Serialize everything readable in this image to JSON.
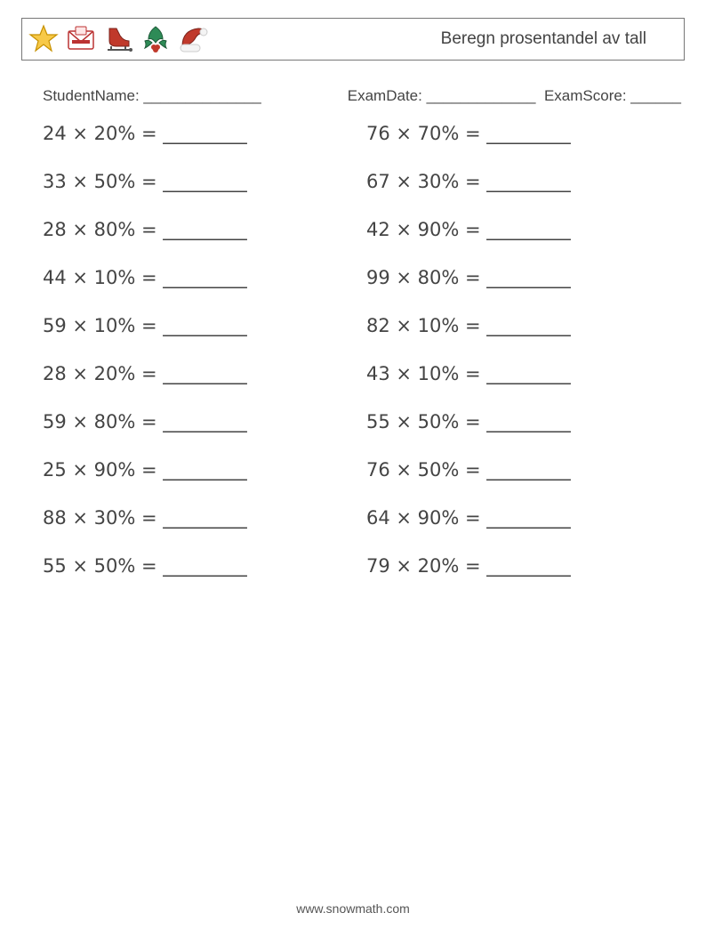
{
  "header": {
    "title": "Beregn prosentandel av tall"
  },
  "meta": {
    "student_label": "StudentName: ______________",
    "exam_date_label": "ExamDate: _____________",
    "exam_score_label": "ExamScore: ______"
  },
  "worksheet": {
    "blank": "_________",
    "multiply_symbol": "×",
    "equals_symbol": "=",
    "problems_left": [
      {
        "n": "24",
        "p": "20%"
      },
      {
        "n": "33",
        "p": "50%"
      },
      {
        "n": "28",
        "p": "80%"
      },
      {
        "n": "44",
        "p": "10%"
      },
      {
        "n": "59",
        "p": "10%"
      },
      {
        "n": "28",
        "p": "20%"
      },
      {
        "n": "59",
        "p": "80%"
      },
      {
        "n": "25",
        "p": "90%"
      },
      {
        "n": "88",
        "p": "30%"
      },
      {
        "n": "55",
        "p": "50%"
      }
    ],
    "problems_right": [
      {
        "n": "76",
        "p": "70%"
      },
      {
        "n": "67",
        "p": "30%"
      },
      {
        "n": "42",
        "p": "90%"
      },
      {
        "n": "99",
        "p": "80%"
      },
      {
        "n": "82",
        "p": "10%"
      },
      {
        "n": "43",
        "p": "10%"
      },
      {
        "n": "55",
        "p": "50%"
      },
      {
        "n": "76",
        "p": "50%"
      },
      {
        "n": "64",
        "p": "90%"
      },
      {
        "n": "79",
        "p": "20%"
      }
    ]
  },
  "footer": {
    "url": "www.snowmath.com"
  },
  "colors": {
    "text": "#444444",
    "border": "#777777",
    "background": "#ffffff"
  }
}
